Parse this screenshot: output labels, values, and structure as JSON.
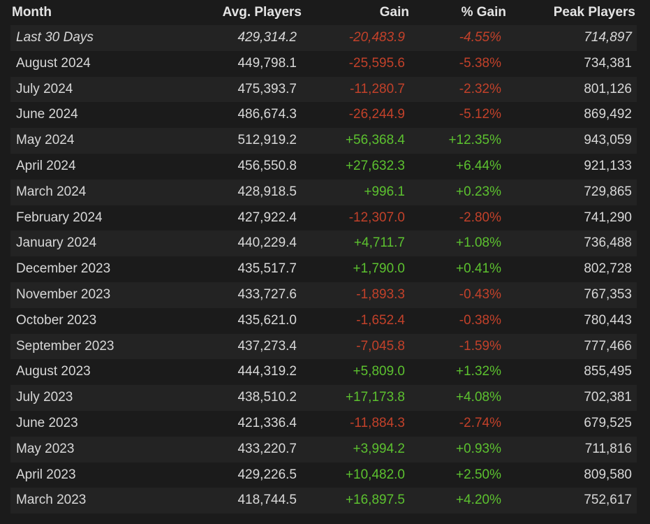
{
  "table": {
    "headers": [
      "Month",
      "Avg. Players",
      "Gain",
      "% Gain",
      "Peak Players"
    ],
    "rows": [
      [
        "Last 30 Days",
        "429,314.2",
        "-20,483.9",
        "-4.55%",
        "714,897"
      ],
      [
        "August 2024",
        "449,798.1",
        "-25,595.6",
        "-5.38%",
        "734,381"
      ],
      [
        "July 2024",
        "475,393.7",
        "-11,280.7",
        "-2.32%",
        "801,126"
      ],
      [
        "June 2024",
        "486,674.3",
        "-26,244.9",
        "-5.12%",
        "869,492"
      ],
      [
        "May 2024",
        "512,919.2",
        "+56,368.4",
        "+12.35%",
        "943,059"
      ],
      [
        "April 2024",
        "456,550.8",
        "+27,632.3",
        "+6.44%",
        "921,133"
      ],
      [
        "March 2024",
        "428,918.5",
        "+996.1",
        "+0.23%",
        "729,865"
      ],
      [
        "February 2024",
        "427,922.4",
        "-12,307.0",
        "-2.80%",
        "741,290"
      ],
      [
        "January 2024",
        "440,229.4",
        "+4,711.7",
        "+1.08%",
        "736,488"
      ],
      [
        "December 2023",
        "435,517.7",
        "+1,790.0",
        "+0.41%",
        "802,728"
      ],
      [
        "November 2023",
        "433,727.6",
        "-1,893.3",
        "-0.43%",
        "767,353"
      ],
      [
        "October 2023",
        "435,621.0",
        "-1,652.4",
        "-0.38%",
        "780,443"
      ],
      [
        "September 2023",
        "437,273.4",
        "-7,045.8",
        "-1.59%",
        "777,466"
      ],
      [
        "August 2023",
        "444,319.2",
        "+5,809.0",
        "+1.32%",
        "855,495"
      ],
      [
        "July 2023",
        "438,510.2",
        "+17,173.8",
        "+4.08%",
        "702,381"
      ],
      [
        "June 2023",
        "421,336.4",
        "-11,884.3",
        "-2.74%",
        "679,525"
      ],
      [
        "May 2023",
        "433,220.7",
        "+3,994.2",
        "+0.93%",
        "711,816"
      ],
      [
        "April 2023",
        "429,226.5",
        "+10,482.0",
        "+2.50%",
        "809,580"
      ],
      [
        "March 2023",
        "418,744.5",
        "+16,897.5",
        "+4.20%",
        "752,617"
      ]
    ]
  }
}
